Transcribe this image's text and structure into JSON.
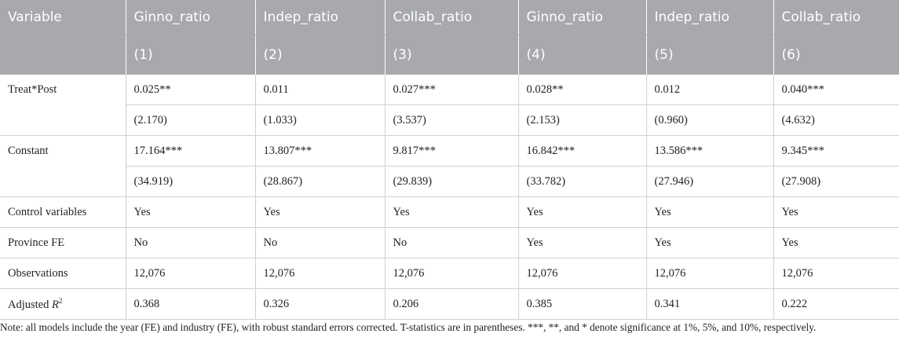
{
  "header": {
    "variable_label": "Variable",
    "columns": [
      {
        "name": "Ginno_ratio",
        "num": "(1)"
      },
      {
        "name": "Indep_ratio",
        "num": "(2)"
      },
      {
        "name": "Collab_ratio",
        "num": "(3)"
      },
      {
        "name": "Ginno_ratio",
        "num": "(4)"
      },
      {
        "name": "Indep_ratio",
        "num": "(5)"
      },
      {
        "name": "Collab_ratio",
        "num": "(6)"
      }
    ]
  },
  "rows": {
    "treat_post": {
      "label": "Treat*Post",
      "coef": [
        "0.025**",
        "0.011",
        "0.027***",
        "0.028**",
        "0.012",
        "0.040***"
      ],
      "tstat": [
        "(2.170)",
        "(1.033)",
        "(3.537)",
        "(2.153)",
        "(0.960)",
        "(4.632)"
      ]
    },
    "constant": {
      "label": "Constant",
      "coef": [
        "17.164***",
        "13.807***",
        "9.817***",
        "16.842***",
        "13.586***",
        "9.345***"
      ],
      "tstat": [
        "(34.919)",
        "(28.867)",
        "(29.839)",
        "(33.782)",
        "(27.946)",
        "(27.908)"
      ]
    },
    "control": {
      "label": "Control variables",
      "values": [
        "Yes",
        "Yes",
        "Yes",
        "Yes",
        "Yes",
        "Yes"
      ]
    },
    "province_fe": {
      "label": "Province FE",
      "values": [
        "No",
        "No",
        "No",
        "Yes",
        "Yes",
        "Yes"
      ]
    },
    "observations": {
      "label": "Observations",
      "values": [
        "12,076",
        "12,076",
        "12,076",
        "12,076",
        "12,076",
        "12,076"
      ]
    },
    "adj_r2": {
      "label": "Adjusted ",
      "label_italic": "R",
      "label_sup": "2",
      "values": [
        "0.368",
        "0.326",
        "0.206",
        "0.385",
        "0.341",
        "0.222"
      ]
    }
  },
  "note": "Note: all models include the year (FE) and industry (FE), with robust standard errors corrected. T-statistics are in parentheses. ***, **, and * denote significance at 1%, 5%, and 10%, respectively."
}
